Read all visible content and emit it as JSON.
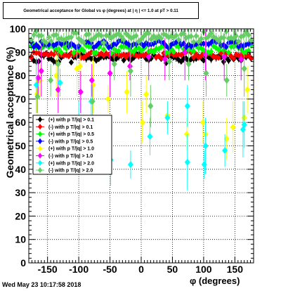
{
  "chart_data": {
    "type": "scatter",
    "title": "Geometrical acceptance for Global vs φ (degrees) at | η | <= 1.0 at pT > 0.11",
    "xlabel": "φ (degrees)",
    "ylabel": "Geometrical acceptance (%)",
    "xlim": [
      -180,
      180
    ],
    "ylim": [
      0,
      100
    ],
    "x_ticks": [
      "-150",
      "-100",
      "-50",
      "0",
      "50",
      "100",
      "150"
    ],
    "y_ticks": [
      "0",
      "10",
      "20",
      "30",
      "40",
      "50",
      "60",
      "70",
      "80",
      "90",
      "100"
    ],
    "grid": true,
    "legend_position": "center-left",
    "series": [
      {
        "name": "(+) with p T/|q| > 0.1",
        "color": "#000000",
        "marker": "diamond",
        "style": "band",
        "center": 87.5,
        "amp": 1.5,
        "err": 1.2,
        "seed": 11
      },
      {
        "name": "(-) with p T/|q| > 0.1",
        "color": "#ff0000",
        "marker": "diamond",
        "style": "band",
        "center": 89.0,
        "amp": 1.2,
        "err": 1.0,
        "seed": 23
      },
      {
        "name": "(+) with p T/|q| > 0.5",
        "color": "#00ff00",
        "marker": "diamond",
        "style": "band",
        "center": 91.5,
        "amp": 1.5,
        "err": 1.5,
        "seed": 37
      },
      {
        "name": "(-) with p T/|q| > 0.5",
        "color": "#0000ff",
        "marker": "diamond",
        "style": "band",
        "center": 93.5,
        "amp": 1.2,
        "err": 1.2,
        "seed": 41
      },
      {
        "name": "(+) with p T/|q| > 1.0",
        "color": "#ffff00",
        "marker": "diamond",
        "style": "scatter",
        "points": [
          [
            -167,
            72
          ],
          [
            -162,
            78
          ],
          [
            -136,
            80
          ],
          [
            -103,
            83
          ],
          [
            -98,
            84
          ],
          [
            -77,
            76
          ],
          [
            -53,
            70
          ],
          [
            -23,
            73
          ],
          [
            2,
            60
          ],
          [
            8,
            72
          ],
          [
            42,
            63
          ],
          [
            73,
            55
          ],
          [
            99,
            60
          ],
          [
            103,
            55
          ],
          [
            137,
            53
          ],
          [
            147,
            58
          ],
          [
            165,
            62
          ],
          [
            170,
            74
          ]
        ]
      },
      {
        "name": "(-) with p T/|q| > 1.0",
        "color": "#ff00ff",
        "marker": "diamond",
        "style": "scatter",
        "points": [
          [
            -165,
            79
          ],
          [
            -160,
            82
          ],
          [
            -133,
            74
          ],
          [
            -97,
            73
          ],
          [
            -79,
            78
          ],
          [
            -50,
            81
          ],
          [
            -18,
            84
          ],
          [
            12,
            88
          ],
          [
            38,
            87
          ],
          [
            70,
            90
          ],
          [
            103,
            89
          ],
          [
            133,
            88
          ],
          [
            160,
            87
          ]
        ]
      },
      {
        "name": "(+) with p T/|q| > 2.0",
        "color": "#00ffff",
        "marker": "diamond",
        "style": "scatter",
        "points": [
          [
            -168,
            76
          ],
          [
            -130,
            77
          ],
          [
            -100,
            57
          ],
          [
            -80,
            69
          ],
          [
            -49,
            44
          ],
          [
            -17,
            42
          ],
          [
            14,
            54
          ],
          [
            42,
            62
          ],
          [
            74,
            67
          ],
          [
            74,
            43
          ],
          [
            101,
            42
          ],
          [
            103,
            50
          ],
          [
            134,
            48
          ],
          [
            163,
            57
          ],
          [
            165,
            59
          ]
        ]
      },
      {
        "name": "(-) with p T/|q| > 2.0",
        "color": "#66cc66",
        "marker": "diamond",
        "style": "scatter",
        "points": [
          [
            -166,
            71
          ],
          [
            -145,
            78
          ],
          [
            -133,
            85
          ],
          [
            -78,
            69
          ],
          [
            -43,
            85
          ],
          [
            -17,
            82
          ],
          [
            15,
            67
          ],
          [
            45,
            86
          ],
          [
            76,
            85
          ],
          [
            104,
            81
          ],
          [
            137,
            78
          ],
          [
            165,
            83
          ]
        ]
      },
      {
        "name": "(-) with p T/|q| > 2.0",
        "color": "#66cc66",
        "marker": "diamond",
        "style": "band",
        "center": 96.5,
        "amp": 1.8,
        "err": 3.0,
        "seed": 53
      }
    ]
  },
  "footer": {
    "date": "Wed May 23 10:17:58 2018"
  }
}
